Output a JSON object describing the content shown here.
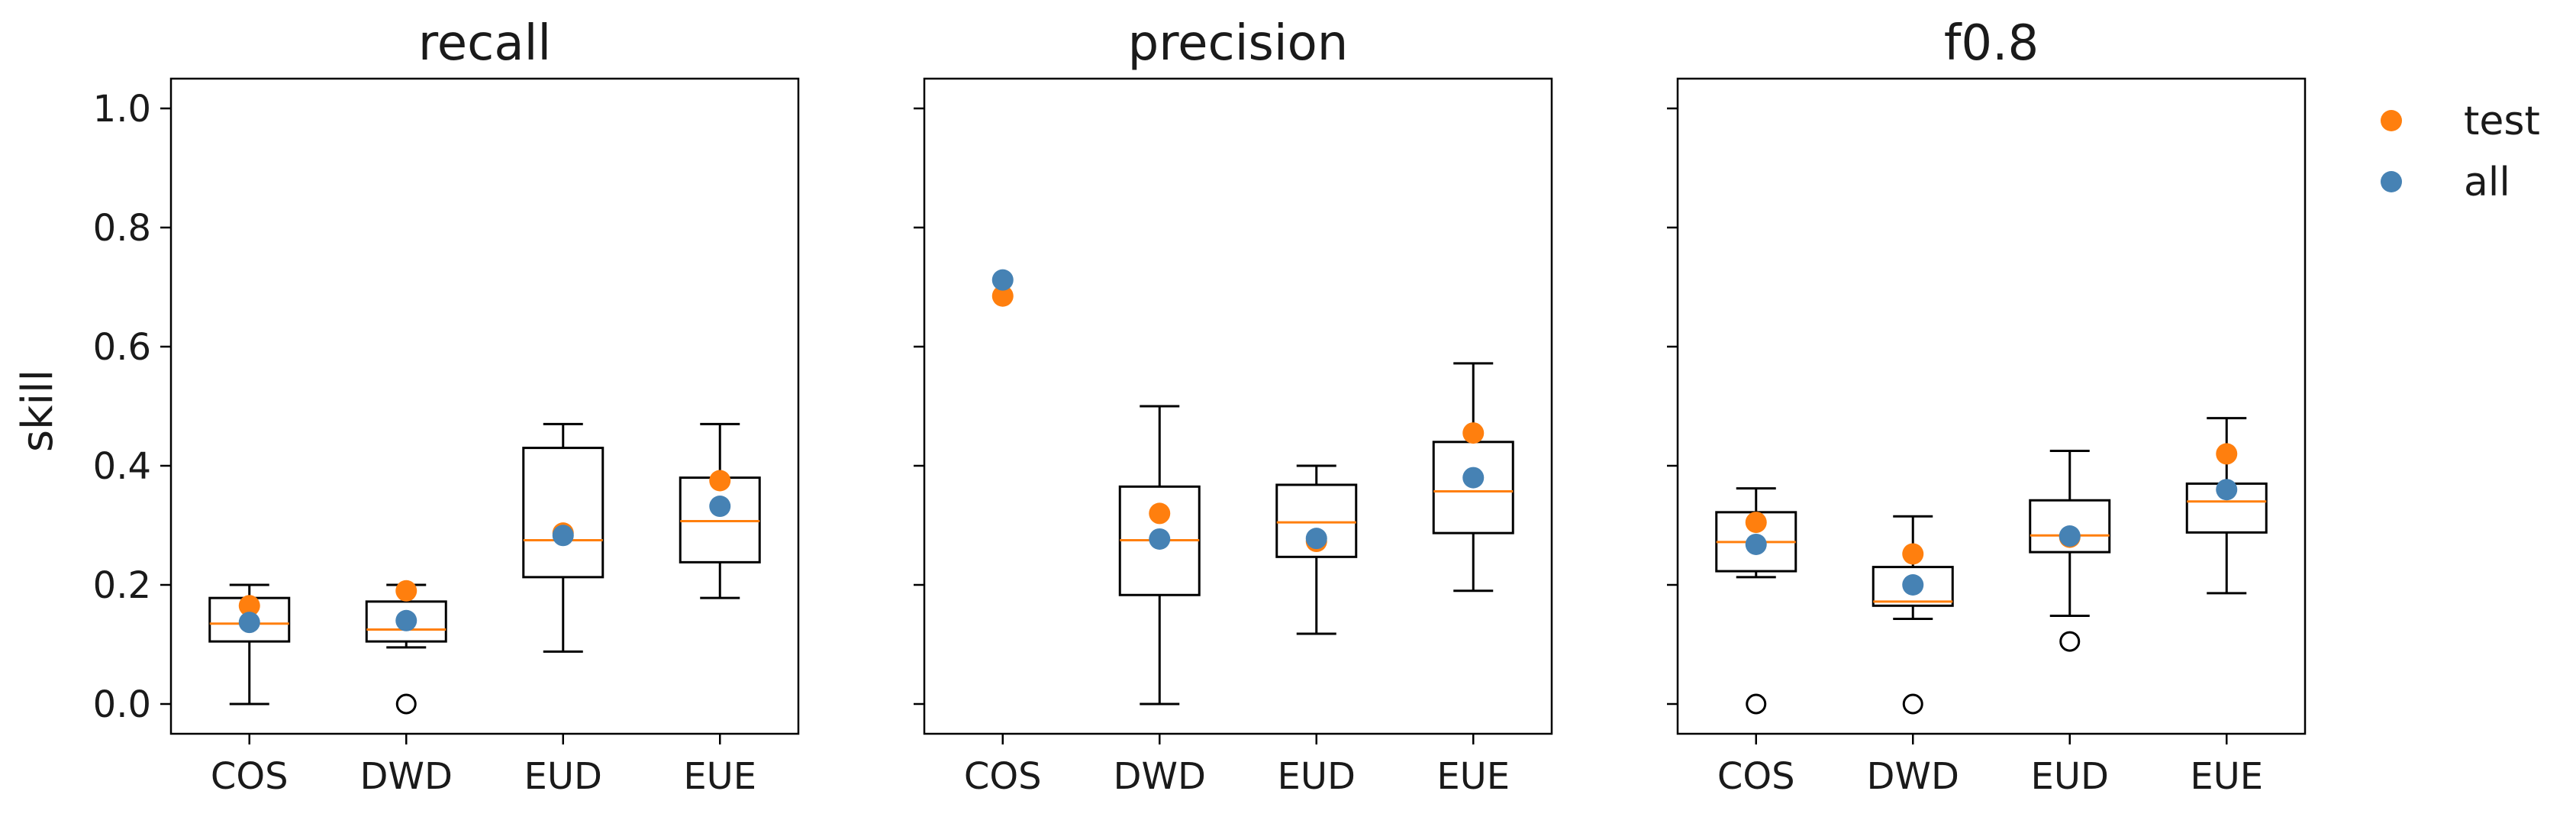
{
  "chart_data": {
    "type": "box",
    "ylabel": "skill",
    "ylim": [
      -0.05,
      1.05
    ],
    "yticks": [
      0.0,
      0.2,
      0.4,
      0.6,
      0.8,
      1.0
    ],
    "ytick_labels": [
      "0.0",
      "0.2",
      "0.4",
      "0.6",
      "0.8",
      "1.0"
    ],
    "categories": [
      "COS",
      "DWD",
      "EUD",
      "EUE"
    ],
    "legend": {
      "position": "top-right",
      "entries": [
        {
          "name": "test",
          "color": "#ff7f0e"
        },
        {
          "name": "all",
          "color": "#4682b4"
        }
      ]
    },
    "colors": {
      "box": "#000000",
      "median": "#ff7f0e",
      "test": "#ff7f0e",
      "all": "#4682b4"
    },
    "panels": [
      {
        "title": "recall",
        "boxes": [
          {
            "category": "COS",
            "whislo": 0.0,
            "q1": 0.105,
            "median": 0.135,
            "q3": 0.178,
            "whishi": 0.2,
            "fliers": []
          },
          {
            "category": "DWD",
            "whislo": 0.095,
            "q1": 0.105,
            "median": 0.125,
            "q3": 0.172,
            "whishi": 0.2,
            "fliers": [
              0.0
            ]
          },
          {
            "category": "EUD",
            "whislo": 0.088,
            "q1": 0.213,
            "median": 0.275,
            "q3": 0.43,
            "whishi": 0.47,
            "fliers": []
          },
          {
            "category": "EUE",
            "whislo": 0.178,
            "q1": 0.238,
            "median": 0.307,
            "q3": 0.38,
            "whishi": 0.47,
            "fliers": []
          }
        ],
        "test": [
          0.165,
          0.19,
          0.287,
          0.375
        ],
        "all": [
          0.137,
          0.14,
          0.283,
          0.332
        ]
      },
      {
        "title": "precision",
        "boxes": [
          null,
          {
            "category": "DWD",
            "whislo": 0.0,
            "q1": 0.183,
            "median": 0.275,
            "q3": 0.365,
            "whishi": 0.5,
            "fliers": []
          },
          {
            "category": "EUD",
            "whislo": 0.118,
            "q1": 0.247,
            "median": 0.305,
            "q3": 0.368,
            "whishi": 0.4,
            "fliers": []
          },
          {
            "category": "EUE",
            "whislo": 0.19,
            "q1": 0.287,
            "median": 0.357,
            "q3": 0.44,
            "whishi": 0.572,
            "fliers": []
          }
        ],
        "test": [
          0.685,
          0.32,
          0.273,
          0.455
        ],
        "all": [
          0.712,
          0.277,
          0.278,
          0.38
        ]
      },
      {
        "title": "f0.8",
        "boxes": [
          {
            "category": "COS",
            "whislo": 0.213,
            "q1": 0.223,
            "median": 0.272,
            "q3": 0.322,
            "whishi": 0.362,
            "fliers": [
              0.0
            ]
          },
          {
            "category": "DWD",
            "whislo": 0.143,
            "q1": 0.165,
            "median": 0.172,
            "q3": 0.23,
            "whishi": 0.315,
            "fliers": [
              0.0
            ]
          },
          {
            "category": "EUD",
            "whislo": 0.148,
            "q1": 0.255,
            "median": 0.283,
            "q3": 0.342,
            "whishi": 0.425,
            "fliers": [
              0.105
            ]
          },
          {
            "category": "EUE",
            "whislo": 0.186,
            "q1": 0.288,
            "median": 0.34,
            "q3": 0.37,
            "whishi": 0.48,
            "fliers": []
          }
        ],
        "test": [
          0.305,
          0.252,
          0.28,
          0.42
        ],
        "all": [
          0.268,
          0.2,
          0.282,
          0.36
        ]
      }
    ]
  }
}
